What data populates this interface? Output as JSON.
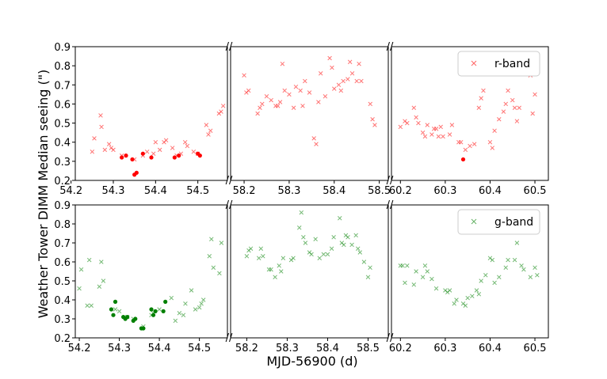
{
  "figure": {
    "xlabel": "MJD-56900 (d)",
    "ylabel": "Weather Tower DIMM Median seeing (\")",
    "break_mark": "//"
  },
  "chart_data": [
    {
      "type": "scatter",
      "legend": {
        "label": "r-band",
        "placement": "top-right"
      },
      "ylim": [
        0.2,
        0.9
      ],
      "yticks": [
        "0.2",
        "0.3",
        "0.4",
        "0.5",
        "0.6",
        "0.7",
        "0.8",
        "0.9"
      ],
      "color": "#ff0000",
      "segments": [
        {
          "xlim": [
            54.21,
            54.57
          ],
          "xticks": [
            "54.2",
            "54.3",
            "54.4",
            "54.5"
          ],
          "crosses": [
            [
              54.25,
              0.35
            ],
            [
              54.255,
              0.42
            ],
            [
              54.27,
              0.54
            ],
            [
              54.272,
              0.48
            ],
            [
              54.28,
              0.36
            ],
            [
              54.29,
              0.39
            ],
            [
              54.295,
              0.37
            ],
            [
              54.3,
              0.36
            ],
            [
              54.32,
              0.33
            ],
            [
              54.35,
              0.31
            ],
            [
              54.37,
              0.33
            ],
            [
              54.38,
              0.35
            ],
            [
              54.395,
              0.34
            ],
            [
              54.4,
              0.4
            ],
            [
              54.41,
              0.36
            ],
            [
              54.42,
              0.4
            ],
            [
              54.425,
              0.41
            ],
            [
              54.44,
              0.37
            ],
            [
              54.45,
              0.33
            ],
            [
              54.46,
              0.34
            ],
            [
              54.47,
              0.4
            ],
            [
              54.475,
              0.38
            ],
            [
              54.49,
              0.35
            ],
            [
              54.5,
              0.34
            ],
            [
              54.52,
              0.49
            ],
            [
              54.525,
              0.44
            ],
            [
              54.53,
              0.46
            ],
            [
              54.55,
              0.55
            ],
            [
              54.555,
              0.56
            ],
            [
              54.56,
              0.59
            ]
          ],
          "dots": [
            [
              54.32,
              0.32
            ],
            [
              54.33,
              0.33
            ],
            [
              54.345,
              0.31
            ],
            [
              54.35,
              0.23
            ],
            [
              54.355,
              0.24
            ],
            [
              54.37,
              0.34
            ],
            [
              54.39,
              0.32
            ],
            [
              54.445,
              0.32
            ],
            [
              54.455,
              0.33
            ],
            [
              54.5,
              0.34
            ],
            [
              54.505,
              0.33
            ]
          ]
        },
        {
          "xlim": [
            58.17,
            58.52
          ],
          "xticks": [
            "58.2",
            "58.3",
            "58.4",
            "58.5"
          ],
          "crosses": [
            [
              58.2,
              0.75
            ],
            [
              58.205,
              0.66
            ],
            [
              58.21,
              0.67
            ],
            [
              58.23,
              0.55
            ],
            [
              58.235,
              0.58
            ],
            [
              58.24,
              0.6
            ],
            [
              58.25,
              0.64
            ],
            [
              58.26,
              0.62
            ],
            [
              58.27,
              0.59
            ],
            [
              58.275,
              0.59
            ],
            [
              58.28,
              0.61
            ],
            [
              58.285,
              0.81
            ],
            [
              58.29,
              0.67
            ],
            [
              58.3,
              0.65
            ],
            [
              58.31,
              0.58
            ],
            [
              58.315,
              0.69
            ],
            [
              58.325,
              0.67
            ],
            [
              58.33,
              0.59
            ],
            [
              58.335,
              0.72
            ],
            [
              58.345,
              0.66
            ],
            [
              58.355,
              0.42
            ],
            [
              58.36,
              0.39
            ],
            [
              58.365,
              0.61
            ],
            [
              58.37,
              0.76
            ],
            [
              58.38,
              0.64
            ],
            [
              58.39,
              0.84
            ],
            [
              58.395,
              0.79
            ],
            [
              58.4,
              0.68
            ],
            [
              58.41,
              0.7
            ],
            [
              58.415,
              0.67
            ],
            [
              58.42,
              0.72
            ],
            [
              58.43,
              0.73
            ],
            [
              58.435,
              0.82
            ],
            [
              58.44,
              0.76
            ],
            [
              58.45,
              0.72
            ],
            [
              58.455,
              0.81
            ],
            [
              58.46,
              0.72
            ],
            [
              58.48,
              0.6
            ],
            [
              58.485,
              0.52
            ],
            [
              58.49,
              0.49
            ]
          ],
          "dots": []
        },
        {
          "xlim": [
            60.18,
            60.53
          ],
          "xticks": [
            "60.2",
            "60.3",
            "60.4",
            "60.5"
          ],
          "crosses": [
            [
              60.2,
              0.48
            ],
            [
              60.21,
              0.51
            ],
            [
              60.215,
              0.5
            ],
            [
              60.23,
              0.58
            ],
            [
              60.235,
              0.53
            ],
            [
              60.24,
              0.5
            ],
            [
              60.25,
              0.45
            ],
            [
              60.255,
              0.43
            ],
            [
              60.26,
              0.49
            ],
            [
              60.27,
              0.44
            ],
            [
              60.275,
              0.47
            ],
            [
              60.28,
              0.47
            ],
            [
              60.285,
              0.43
            ],
            [
              60.29,
              0.48
            ],
            [
              60.295,
              0.43
            ],
            [
              60.31,
              0.44
            ],
            [
              60.315,
              0.49
            ],
            [
              60.33,
              0.4
            ],
            [
              60.335,
              0.4
            ],
            [
              60.345,
              0.36
            ],
            [
              60.355,
              0.38
            ],
            [
              60.365,
              0.39
            ],
            [
              60.375,
              0.58
            ],
            [
              60.38,
              0.63
            ],
            [
              60.385,
              0.67
            ],
            [
              60.4,
              0.4
            ],
            [
              60.405,
              0.37
            ],
            [
              60.41,
              0.46
            ],
            [
              60.42,
              0.52
            ],
            [
              60.43,
              0.56
            ],
            [
              60.435,
              0.6
            ],
            [
              60.44,
              0.67
            ],
            [
              60.45,
              0.62
            ],
            [
              60.455,
              0.58
            ],
            [
              60.46,
              0.51
            ],
            [
              60.465,
              0.58
            ],
            [
              60.49,
              0.75
            ],
            [
              60.495,
              0.55
            ],
            [
              60.5,
              0.65
            ]
          ],
          "dots": [
            [
              60.34,
              0.31
            ]
          ]
        }
      ]
    },
    {
      "type": "scatter",
      "legend": {
        "label": "g-band",
        "placement": "top-right"
      },
      "ylim": [
        0.2,
        0.9
      ],
      "yticks": [
        "0.2",
        "0.3",
        "0.4",
        "0.5",
        "0.6",
        "0.7",
        "0.8",
        "0.9"
      ],
      "color": "#008000",
      "segments": [
        {
          "xlim": [
            54.19,
            54.57
          ],
          "xticks": [
            "54.2",
            "54.3",
            "54.4",
            "54.5"
          ],
          "crosses": [
            [
              54.2,
              0.46
            ],
            [
              54.205,
              0.56
            ],
            [
              54.22,
              0.37
            ],
            [
              54.225,
              0.61
            ],
            [
              54.23,
              0.37
            ],
            [
              54.25,
              0.47
            ],
            [
              54.255,
              0.6
            ],
            [
              54.26,
              0.5
            ],
            [
              54.29,
              0.35
            ],
            [
              54.3,
              0.34
            ],
            [
              54.32,
              0.31
            ],
            [
              54.335,
              0.3
            ],
            [
              54.36,
              0.26
            ],
            [
              54.38,
              0.32
            ],
            [
              54.385,
              0.33
            ],
            [
              54.4,
              0.35
            ],
            [
              54.43,
              0.41
            ],
            [
              54.44,
              0.29
            ],
            [
              54.45,
              0.33
            ],
            [
              54.46,
              0.32
            ],
            [
              54.465,
              0.38
            ],
            [
              54.48,
              0.45
            ],
            [
              54.49,
              0.35
            ],
            [
              54.5,
              0.36
            ],
            [
              54.505,
              0.38
            ],
            [
              54.51,
              0.4
            ],
            [
              54.525,
              0.63
            ],
            [
              54.53,
              0.72
            ],
            [
              54.535,
              0.57
            ],
            [
              54.55,
              0.54
            ],
            [
              54.555,
              0.7
            ]
          ],
          "dots": [
            [
              54.28,
              0.35
            ],
            [
              54.285,
              0.32
            ],
            [
              54.29,
              0.39
            ],
            [
              54.31,
              0.31
            ],
            [
              54.315,
              0.3
            ],
            [
              54.32,
              0.31
            ],
            [
              54.335,
              0.29
            ],
            [
              54.34,
              0.3
            ],
            [
              54.355,
              0.25
            ],
            [
              54.36,
              0.25
            ],
            [
              54.38,
              0.35
            ],
            [
              54.385,
              0.32
            ],
            [
              54.39,
              0.34
            ],
            [
              54.41,
              0.34
            ],
            [
              54.415,
              0.39
            ]
          ]
        },
        {
          "xlim": [
            58.16,
            58.55
          ],
          "xticks": [
            "58.2",
            "58.3",
            "58.4",
            "58.5"
          ],
          "crosses": [
            [
              58.2,
              0.63
            ],
            [
              58.205,
              0.66
            ],
            [
              58.21,
              0.67
            ],
            [
              58.23,
              0.62
            ],
            [
              58.235,
              0.67
            ],
            [
              58.24,
              0.63
            ],
            [
              58.255,
              0.56
            ],
            [
              58.26,
              0.56
            ],
            [
              58.27,
              0.52
            ],
            [
              58.28,
              0.58
            ],
            [
              58.285,
              0.55
            ],
            [
              58.29,
              0.62
            ],
            [
              58.31,
              0.61
            ],
            [
              58.315,
              0.62
            ],
            [
              58.33,
              0.78
            ],
            [
              58.335,
              0.86
            ],
            [
              58.34,
              0.73
            ],
            [
              58.345,
              0.7
            ],
            [
              58.355,
              0.65
            ],
            [
              58.36,
              0.64
            ],
            [
              58.37,
              0.72
            ],
            [
              58.38,
              0.62
            ],
            [
              58.39,
              0.64
            ],
            [
              58.4,
              0.64
            ],
            [
              58.41,
              0.67
            ],
            [
              58.415,
              0.73
            ],
            [
              58.43,
              0.83
            ],
            [
              58.435,
              0.7
            ],
            [
              58.44,
              0.69
            ],
            [
              58.445,
              0.74
            ],
            [
              58.45,
              0.73
            ],
            [
              58.46,
              0.69
            ],
            [
              58.47,
              0.74
            ],
            [
              58.475,
              0.67
            ],
            [
              58.48,
              0.65
            ],
            [
              58.49,
              0.6
            ],
            [
              58.5,
              0.52
            ],
            [
              58.505,
              0.57
            ]
          ],
          "dots": []
        },
        {
          "xlim": [
            60.18,
            60.53
          ],
          "xticks": [
            "60.2",
            "60.3",
            "60.4",
            "60.5"
          ],
          "crosses": [
            [
              60.2,
              0.58
            ],
            [
              60.205,
              0.58
            ],
            [
              60.21,
              0.49
            ],
            [
              60.215,
              0.58
            ],
            [
              60.23,
              0.48
            ],
            [
              60.235,
              0.55
            ],
            [
              60.25,
              0.52
            ],
            [
              60.255,
              0.58
            ],
            [
              60.26,
              0.55
            ],
            [
              60.27,
              0.51
            ],
            [
              60.28,
              0.46
            ],
            [
              60.3,
              0.45
            ],
            [
              60.305,
              0.44
            ],
            [
              60.31,
              0.45
            ],
            [
              60.32,
              0.38
            ],
            [
              60.325,
              0.4
            ],
            [
              60.34,
              0.38
            ],
            [
              60.345,
              0.37
            ],
            [
              60.35,
              0.41
            ],
            [
              60.36,
              0.42
            ],
            [
              60.37,
              0.45
            ],
            [
              60.375,
              0.43
            ],
            [
              60.38,
              0.5
            ],
            [
              60.39,
              0.53
            ],
            [
              60.4,
              0.62
            ],
            [
              60.405,
              0.61
            ],
            [
              60.41,
              0.49
            ],
            [
              60.42,
              0.52
            ],
            [
              60.435,
              0.57
            ],
            [
              60.44,
              0.61
            ],
            [
              60.455,
              0.61
            ],
            [
              60.46,
              0.7
            ],
            [
              60.47,
              0.58
            ],
            [
              60.475,
              0.56
            ],
            [
              60.49,
              0.52
            ],
            [
              60.5,
              0.57
            ],
            [
              60.505,
              0.53
            ]
          ],
          "dots": []
        }
      ]
    }
  ]
}
